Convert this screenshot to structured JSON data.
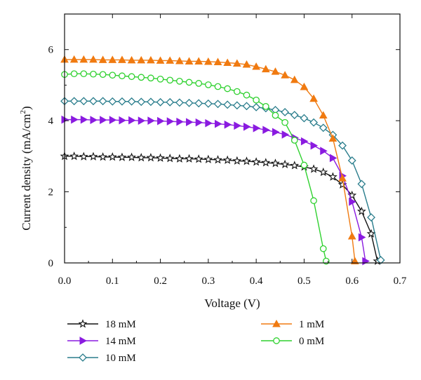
{
  "chart_data": {
    "type": "line",
    "xlabel": "Voltage (V)",
    "ylabel": "Current density (mA/cm",
    "ylabel_sup": "2",
    "ylabel_end": ")",
    "xlim": [
      0,
      0.7
    ],
    "ylim": [
      0,
      7
    ],
    "xticks": [
      "0.0",
      "0.1",
      "0.2",
      "0.3",
      "0.4",
      "0.5",
      "0.6",
      "0.7"
    ],
    "yticks": [
      "0",
      "2",
      "4",
      "6"
    ],
    "grid": false,
    "legend_position": "bottom",
    "series": [
      {
        "name": "18 mM",
        "color": "#111111",
        "marker": "star",
        "x": [
          0.0,
          0.02,
          0.04,
          0.06,
          0.08,
          0.1,
          0.12,
          0.14,
          0.16,
          0.18,
          0.2,
          0.22,
          0.24,
          0.26,
          0.28,
          0.3,
          0.32,
          0.34,
          0.36,
          0.38,
          0.4,
          0.42,
          0.44,
          0.46,
          0.48,
          0.5,
          0.52,
          0.54,
          0.56,
          0.58,
          0.6,
          0.62,
          0.64,
          0.653
        ],
        "y": [
          3.0,
          3.0,
          2.99,
          2.99,
          2.98,
          2.98,
          2.97,
          2.97,
          2.96,
          2.96,
          2.95,
          2.94,
          2.93,
          2.93,
          2.92,
          2.91,
          2.9,
          2.89,
          2.87,
          2.86,
          2.84,
          2.82,
          2.8,
          2.77,
          2.74,
          2.7,
          2.64,
          2.55,
          2.42,
          2.2,
          1.9,
          1.45,
          0.82,
          0.05
        ]
      },
      {
        "name": "14 mM",
        "color": "#8a1be0",
        "marker": "triangle-right",
        "x": [
          0.0,
          0.02,
          0.04,
          0.06,
          0.08,
          0.1,
          0.12,
          0.14,
          0.16,
          0.18,
          0.2,
          0.22,
          0.24,
          0.26,
          0.28,
          0.3,
          0.32,
          0.34,
          0.36,
          0.38,
          0.4,
          0.42,
          0.44,
          0.46,
          0.48,
          0.5,
          0.52,
          0.54,
          0.56,
          0.58,
          0.6,
          0.62,
          0.628
        ],
        "y": [
          4.03,
          4.03,
          4.03,
          4.02,
          4.02,
          4.02,
          4.01,
          4.01,
          4.0,
          4.0,
          3.99,
          3.98,
          3.97,
          3.96,
          3.95,
          3.93,
          3.91,
          3.89,
          3.86,
          3.83,
          3.79,
          3.74,
          3.68,
          3.61,
          3.52,
          3.42,
          3.3,
          3.15,
          2.95,
          2.45,
          1.72,
          0.72,
          0.05
        ]
      },
      {
        "name": "10 mM",
        "color": "#2a7d8c",
        "marker": "diamond",
        "x": [
          0.0,
          0.02,
          0.04,
          0.06,
          0.08,
          0.1,
          0.12,
          0.14,
          0.16,
          0.18,
          0.2,
          0.22,
          0.24,
          0.26,
          0.28,
          0.3,
          0.32,
          0.34,
          0.36,
          0.38,
          0.4,
          0.42,
          0.44,
          0.46,
          0.48,
          0.5,
          0.52,
          0.54,
          0.56,
          0.58,
          0.6,
          0.62,
          0.64,
          0.66
        ],
        "y": [
          4.55,
          4.55,
          4.55,
          4.55,
          4.55,
          4.54,
          4.54,
          4.54,
          4.53,
          4.53,
          4.52,
          4.52,
          4.51,
          4.5,
          4.49,
          4.48,
          4.47,
          4.45,
          4.43,
          4.41,
          4.38,
          4.35,
          4.3,
          4.24,
          4.16,
          4.07,
          3.95,
          3.8,
          3.6,
          3.3,
          2.88,
          2.22,
          1.28,
          0.08
        ]
      },
      {
        "name": "1 mM",
        "color": "#f07a10",
        "marker": "triangle-up",
        "x": [
          0.0,
          0.02,
          0.04,
          0.06,
          0.08,
          0.1,
          0.12,
          0.14,
          0.16,
          0.18,
          0.2,
          0.22,
          0.24,
          0.26,
          0.28,
          0.3,
          0.32,
          0.34,
          0.36,
          0.38,
          0.4,
          0.42,
          0.44,
          0.46,
          0.48,
          0.5,
          0.52,
          0.54,
          0.56,
          0.58,
          0.6,
          0.606
        ],
        "y": [
          5.72,
          5.72,
          5.72,
          5.72,
          5.71,
          5.71,
          5.71,
          5.7,
          5.7,
          5.7,
          5.69,
          5.69,
          5.68,
          5.67,
          5.67,
          5.66,
          5.65,
          5.63,
          5.61,
          5.58,
          5.52,
          5.45,
          5.38,
          5.28,
          5.15,
          4.95,
          4.62,
          4.15,
          3.5,
          2.38,
          0.75,
          0.05
        ]
      },
      {
        "name": "0 mM",
        "color": "#2fd12f",
        "marker": "circle",
        "x": [
          0.0,
          0.02,
          0.04,
          0.06,
          0.08,
          0.1,
          0.12,
          0.14,
          0.16,
          0.18,
          0.2,
          0.22,
          0.24,
          0.26,
          0.28,
          0.3,
          0.32,
          0.34,
          0.36,
          0.38,
          0.4,
          0.42,
          0.44,
          0.46,
          0.48,
          0.5,
          0.52,
          0.54,
          0.546
        ],
        "y": [
          5.3,
          5.32,
          5.32,
          5.31,
          5.3,
          5.28,
          5.26,
          5.24,
          5.22,
          5.2,
          5.17,
          5.14,
          5.11,
          5.08,
          5.05,
          5.01,
          4.96,
          4.9,
          4.82,
          4.72,
          4.58,
          4.4,
          4.15,
          3.95,
          3.45,
          2.75,
          1.75,
          0.4,
          0.05
        ]
      }
    ]
  }
}
